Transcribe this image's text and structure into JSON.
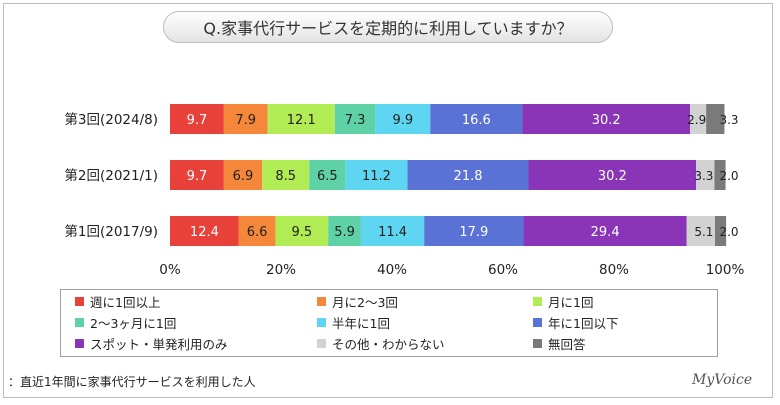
{
  "title": "Q.家事代行サービスを定期的に利用していますか？",
  "footnote": "：直近1年間に家事代行サービスを利用した人",
  "brand": "MyVoice",
  "chart_data": {
    "type": "bar",
    "orientation": "horizontal",
    "stacked": true,
    "percent_stacked": true,
    "categories": [
      "第3回(2024/8)",
      "第2回(2021/1)",
      "第1回(2017/9)"
    ],
    "series": [
      {
        "name": "週に1回以上",
        "color": "#e8413a",
        "values": [
          9.7,
          9.7,
          12.4
        ]
      },
      {
        "name": "月に2～3回",
        "color": "#f5873a",
        "values": [
          7.9,
          6.9,
          6.6
        ]
      },
      {
        "name": "月に1回",
        "color": "#b2ec55",
        "values": [
          12.1,
          8.5,
          9.5
        ]
      },
      {
        "name": "2～3ヶ月に1回",
        "color": "#5fd1a6",
        "values": [
          7.3,
          6.5,
          5.9
        ]
      },
      {
        "name": "半年に1回",
        "color": "#5ed6f2",
        "values": [
          9.9,
          11.2,
          11.4
        ]
      },
      {
        "name": "年に1回以下",
        "color": "#5a72d6",
        "values": [
          16.6,
          21.8,
          17.9
        ]
      },
      {
        "name": "スポット・単発利用のみ",
        "color": "#8a35b8",
        "values": [
          30.2,
          30.2,
          29.4
        ]
      },
      {
        "name": "その他・わからない",
        "color": "#d2d2d2",
        "values": [
          2.9,
          3.3,
          5.1
        ]
      },
      {
        "name": "無回答",
        "color": "#7a7a7a",
        "values": [
          3.3,
          2.0,
          2.0
        ]
      }
    ],
    "x_ticks": [
      "0%",
      "20%",
      "40%",
      "60%",
      "80%",
      "100%"
    ],
    "xlim": [
      0,
      100
    ],
    "legend_position": "bottom"
  }
}
